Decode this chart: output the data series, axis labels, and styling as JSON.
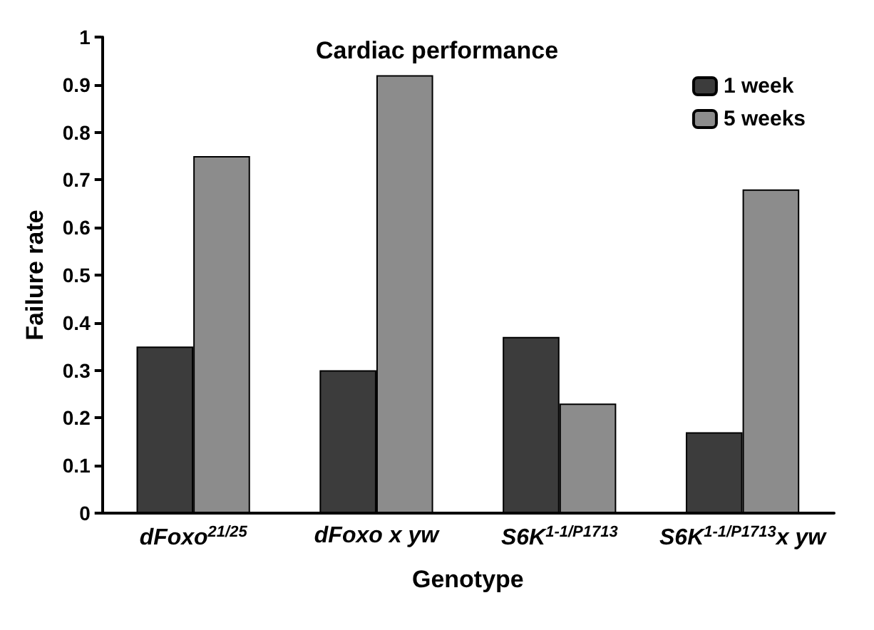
{
  "chart_data": {
    "type": "bar",
    "title": "Cardiac performance",
    "xlabel": "Genotype",
    "ylabel": "Failure rate",
    "categories": [
      "dFoxo$^{21/25}$",
      "dFoxo x yw",
      "S6K$^{1-1/P1713}$",
      "S6K$^{1-1/P1713}$x yw"
    ],
    "series": [
      {
        "name": "1 week",
        "color": "#3c3c3c",
        "values": [
          0.35,
          0.3,
          0.37,
          0.17
        ]
      },
      {
        "name": "5 weeks",
        "color": "#8c8c8c",
        "values": [
          0.75,
          0.92,
          0.23,
          0.68
        ]
      }
    ],
    "ylim": [
      0,
      1
    ],
    "yticks": [
      0,
      0.1,
      0.2,
      0.3,
      0.4,
      0.5,
      0.6,
      0.7,
      0.8,
      0.9,
      1
    ],
    "grid": false,
    "legend": "top right"
  }
}
